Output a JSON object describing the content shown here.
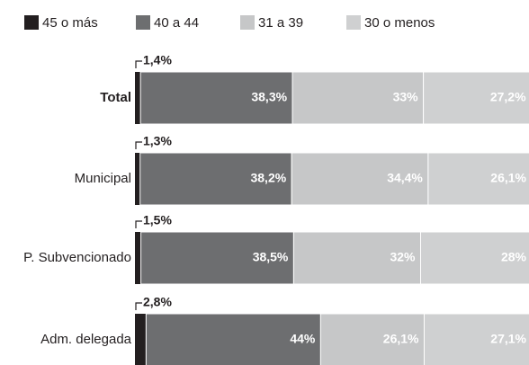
{
  "chart_data": {
    "type": "stacked-bar-horizontal",
    "categories": [
      "Total",
      "Municipal",
      "P. Subvencionado",
      "Adm. delegada"
    ],
    "series": [
      {
        "name": "45 o más",
        "color": "#231f20",
        "values": [
          1.4,
          1.3,
          1.5,
          2.8
        ],
        "value_labels": [
          "1,4%",
          "1,3%",
          "1,5%",
          "2,8%"
        ]
      },
      {
        "name": "40 a 44",
        "color": "#6d6e70",
        "values": [
          38.3,
          38.2,
          38.5,
          44
        ],
        "value_labels": [
          "38,3%",
          "38,2%",
          "38,5%",
          "44%"
        ]
      },
      {
        "name": "31 a 39",
        "color": "#c6c7c8",
        "values": [
          33,
          34.4,
          32,
          26.1
        ],
        "value_labels": [
          "33%",
          "34,4%",
          "32%",
          "26,1%"
        ]
      },
      {
        "name": "30 o menos",
        "color": "#cfd0d1",
        "values": [
          27.2,
          26.1,
          28,
          27.1
        ],
        "value_labels": [
          "27,2%",
          "26,1%",
          "28%",
          "27,1%"
        ]
      }
    ],
    "legend": "top"
  }
}
